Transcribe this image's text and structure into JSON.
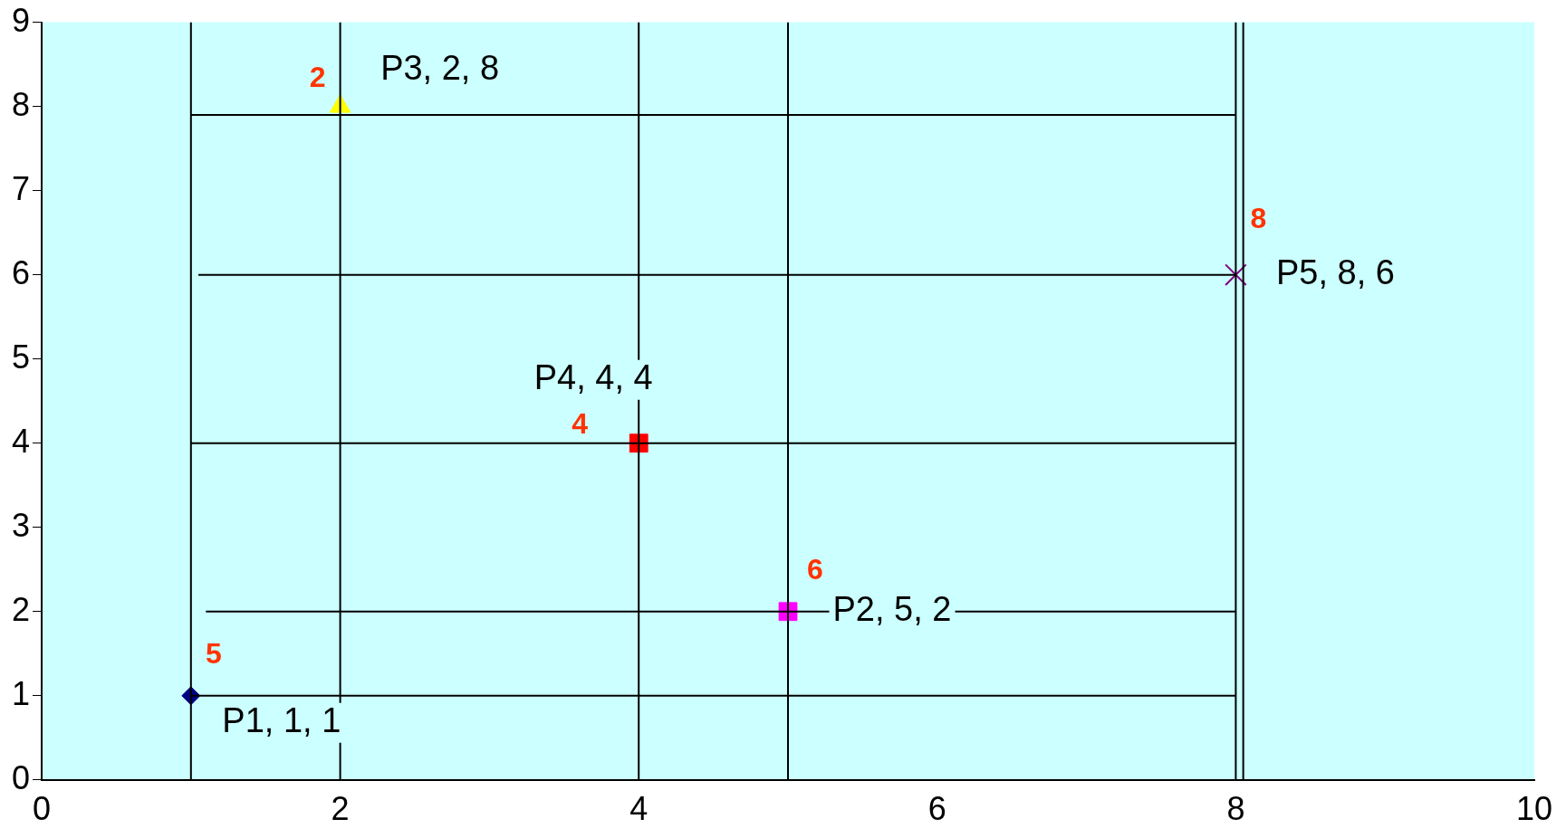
{
  "chart_data": {
    "type": "scatter",
    "xlim": [
      0,
      10
    ],
    "xticks": [
      0,
      2,
      4,
      6,
      8,
      10
    ],
    "ylim": [
      0,
      9
    ],
    "yticks": [
      0,
      1,
      2,
      3,
      4,
      5,
      6,
      7,
      8,
      9
    ],
    "grid": false,
    "legend": false,
    "series": [
      {
        "type": "line",
        "color": "#000000",
        "x": [
          1,
          1
        ],
        "values": [
          0,
          9
        ]
      },
      {
        "type": "line",
        "color": "#000000",
        "x": [
          2,
          2
        ],
        "values": [
          0,
          9
        ]
      },
      {
        "type": "line",
        "color": "#000000",
        "x": [
          4,
          4
        ],
        "values": [
          0,
          9
        ]
      },
      {
        "type": "line",
        "color": "#000000",
        "x": [
          5,
          5
        ],
        "values": [
          0,
          9
        ]
      },
      {
        "type": "line",
        "color": "#000000",
        "x": [
          8,
          8
        ],
        "values": [
          0,
          9
        ]
      },
      {
        "type": "line",
        "color": "#000000",
        "x": [
          8.05,
          8.05
        ],
        "values": [
          0,
          9
        ]
      },
      {
        "type": "line",
        "color": "#000000",
        "x": [
          1,
          8
        ],
        "values": [
          1,
          1
        ]
      },
      {
        "type": "line",
        "color": "#000000",
        "x": [
          1.1,
          8
        ],
        "values": [
          2,
          2
        ]
      },
      {
        "type": "line",
        "color": "#000000",
        "x": [
          1,
          8
        ],
        "values": [
          4,
          4
        ]
      },
      {
        "type": "line",
        "color": "#000000",
        "x": [
          1.05,
          8
        ],
        "values": [
          6,
          6
        ]
      },
      {
        "type": "line",
        "color": "#000000",
        "x": [
          1,
          8
        ],
        "values": [
          7.9,
          7.9
        ]
      },
      {
        "marker": "diamond",
        "color": "#000080",
        "x": [
          1
        ],
        "values": [
          1
        ]
      },
      {
        "marker": "square",
        "color": "#ff00ff",
        "x": [
          5
        ],
        "values": [
          2
        ]
      },
      {
        "marker": "triangle",
        "color": "#ffff00",
        "x": [
          2
        ],
        "values": [
          8
        ]
      },
      {
        "marker": "square",
        "color": "#ff0000",
        "x": [
          4
        ],
        "values": [
          4
        ]
      },
      {
        "marker": "cross",
        "color": "#800080",
        "x": [
          8
        ],
        "values": [
          6
        ]
      }
    ],
    "annotations": [
      {
        "text": "P1, 1, 1",
        "x": 1,
        "y": 1
      },
      {
        "text": "P2, 5, 2",
        "x": 5,
        "y": 2
      },
      {
        "text": "P3, 2, 8",
        "x": 2,
        "y": 8
      },
      {
        "text": "P4, 4, 4",
        "x": 4,
        "y": 4
      },
      {
        "text": "P5, 8, 6",
        "x": 8,
        "y": 6
      },
      {
        "text": "5",
        "x": 1,
        "y": 1
      },
      {
        "text": "6",
        "x": 5,
        "y": 2
      },
      {
        "text": "4",
        "x": 4,
        "y": 4
      },
      {
        "text": "2",
        "x": 2,
        "y": 8
      },
      {
        "text": "8",
        "x": 8,
        "y": 6
      }
    ]
  }
}
